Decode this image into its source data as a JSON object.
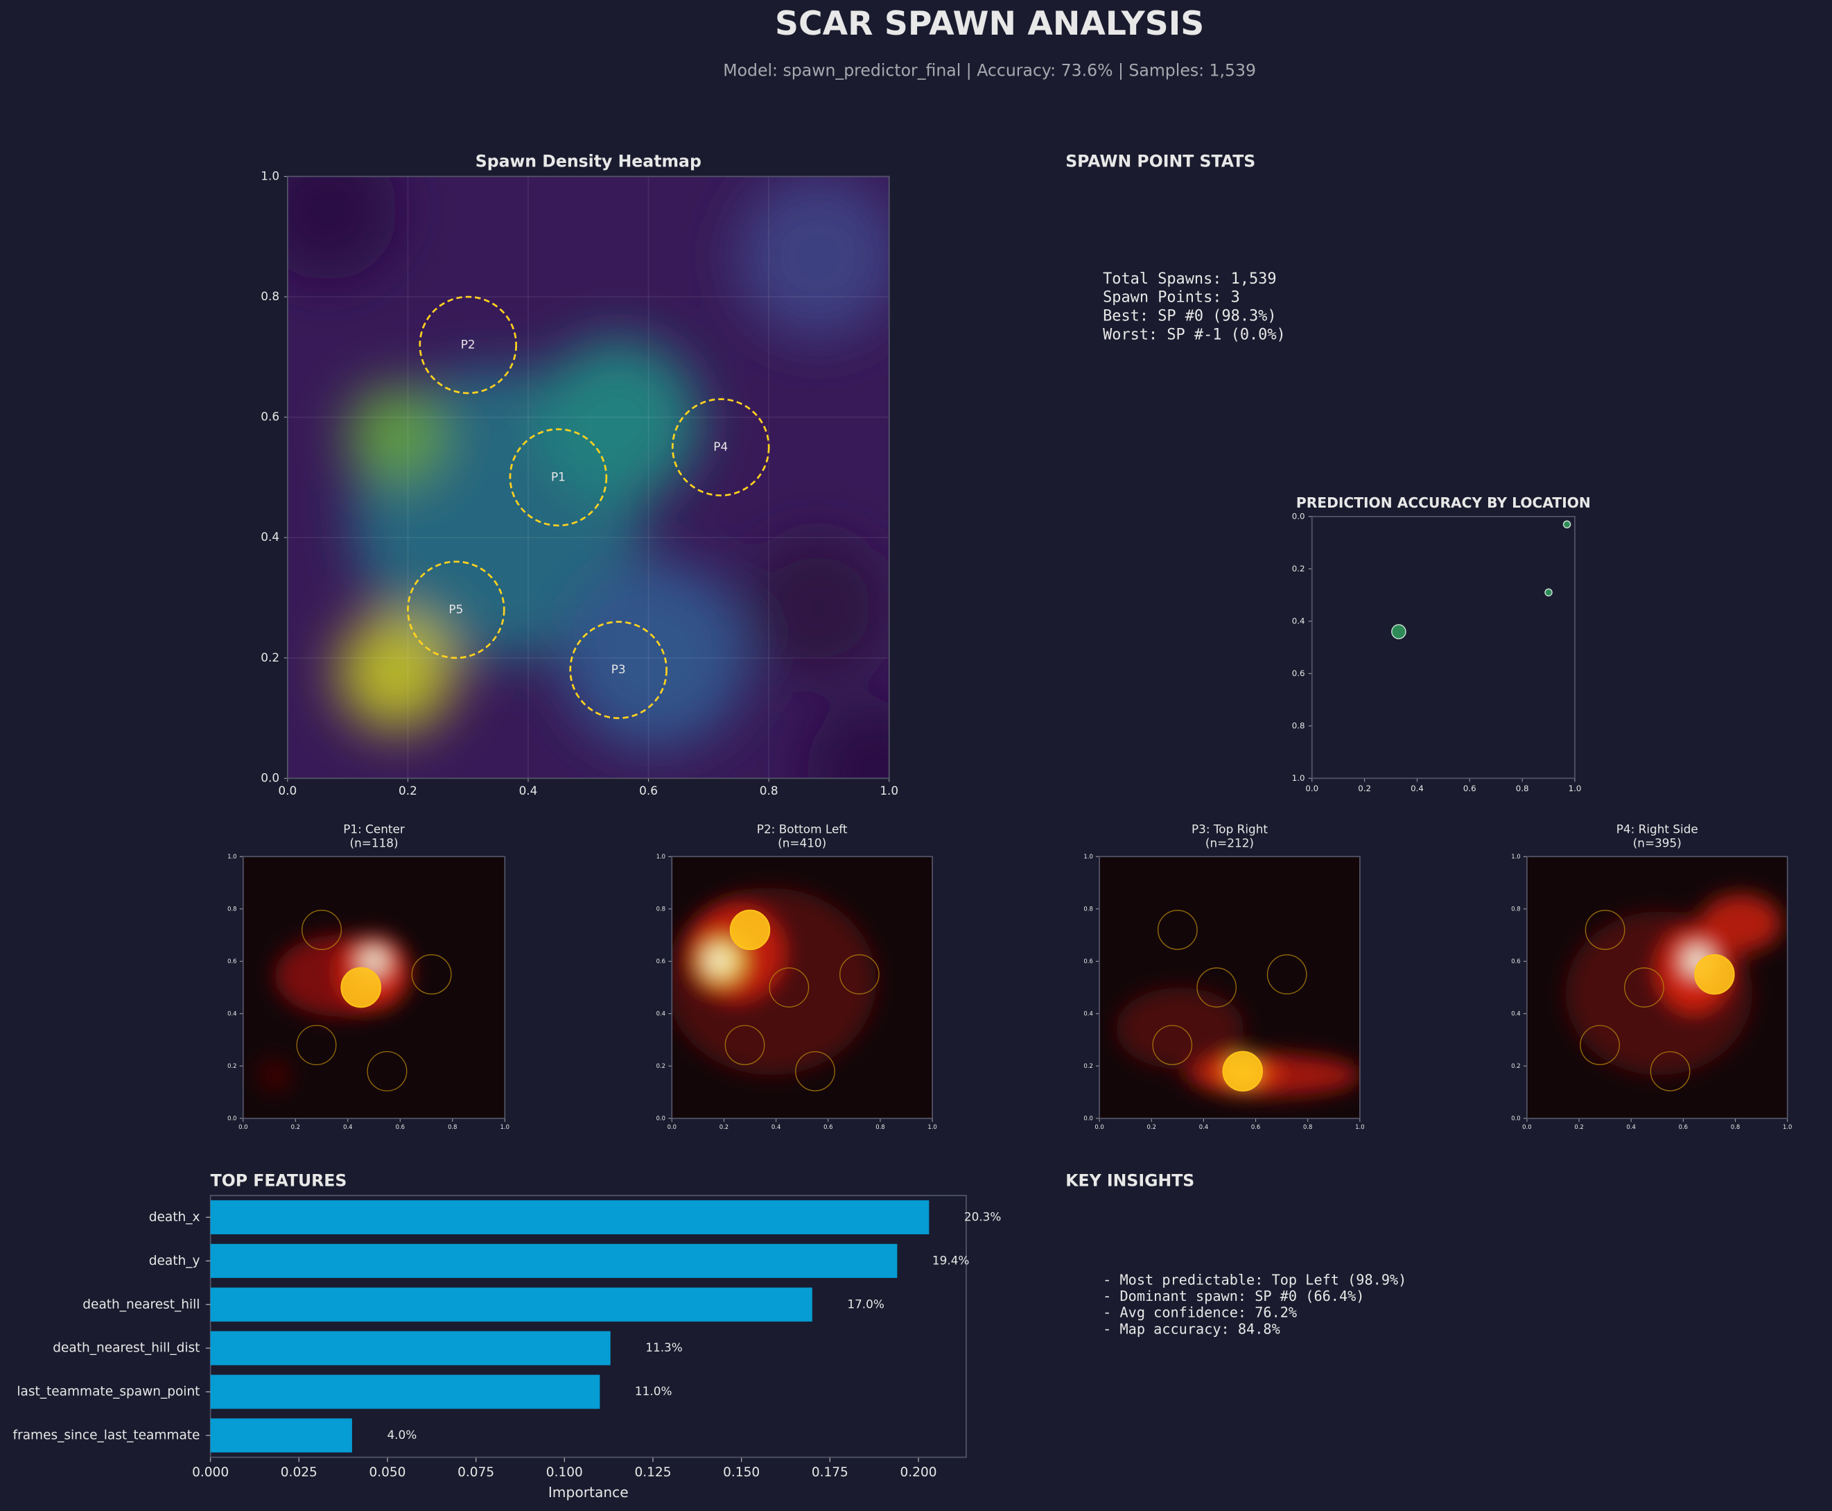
{
  "title": "SCAR SPAWN ANALYSIS",
  "subtitle": "Model: spawn_predictor_final | Accuracy: 73.6% | Samples: 1,539",
  "stats": {
    "title": "SPAWN POINT STATS",
    "lines": [
      "Total Spawns: 1,539",
      "Spawn Points: 3",
      "Best: SP #0 (98.3%)",
      "Worst: SP #-1 (0.0%)"
    ]
  },
  "insights": {
    "title": "KEY INSIGHTS",
    "lines": [
      "- Most predictable: Top Left (98.9%)",
      "- Dominant spawn: SP #0 (66.4%)",
      "- Avg confidence: 76.2%",
      "- Map accuracy: 84.8%"
    ]
  },
  "chart_data": [
    {
      "type": "heatmap",
      "title": "Spawn Density Heatmap",
      "grid": true,
      "color": "#ffd21f",
      "xlim": [
        0,
        1
      ],
      "ylim": [
        0,
        1
      ],
      "xticks": [
        {
          "value": 0,
          "label": "0.0"
        },
        0.2,
        0.4,
        0.6,
        0.8,
        {
          "value": 1,
          "label": "1.0"
        }
      ],
      "yticks": [
        {
          "value": 0,
          "label": "0.0"
        },
        0.2,
        0.4,
        0.6,
        0.8,
        {
          "value": 1,
          "label": "1.0"
        }
      ],
      "zones": [
        {
          "label": "P1",
          "x": 0.45,
          "y": 0.5,
          "r": 0.08
        },
        {
          "label": "P2",
          "x": 0.3,
          "y": 0.72,
          "r": 0.08
        },
        {
          "label": "P3",
          "x": 0.55,
          "y": 0.18,
          "r": 0.08
        },
        {
          "label": "P4",
          "x": 0.72,
          "y": 0.55,
          "r": 0.08
        },
        {
          "label": "P5",
          "x": 0.28,
          "y": 0.28,
          "r": 0.08
        }
      ]
    },
    {
      "type": "scatter",
      "title": "PREDICTION ACCURACY BY LOCATION",
      "color": "#2e8b57",
      "y_inverted": true,
      "xlim": [
        0,
        1
      ],
      "ylim": [
        0,
        1
      ],
      "xticks": [
        {
          "value": 0,
          "label": "0.0"
        },
        0.2,
        0.4,
        0.6,
        0.8,
        {
          "value": 1,
          "label": "1.0"
        }
      ],
      "yticks": [
        {
          "value": 0,
          "label": "0.0"
        },
        0.2,
        0.4,
        0.6,
        0.8,
        {
          "value": 1,
          "label": "1.0"
        }
      ],
      "x": [
        0.97,
        0.9,
        0.33
      ],
      "values": [
        0.03,
        0.29,
        0.44
      ],
      "sizes": [
        3,
        3,
        6
      ]
    },
    {
      "type": "heatmap",
      "title": "P1: Center",
      "subtitle": "(n=118)",
      "grid": false,
      "color": "#ffc41a",
      "highlight": 0,
      "xlim": [
        0,
        1
      ],
      "ylim": [
        0,
        1
      ],
      "xticks": [
        {
          "value": 0,
          "label": "0.0"
        },
        0.2,
        0.4,
        0.6,
        0.8,
        {
          "value": 1,
          "label": "1.0"
        }
      ],
      "yticks": [
        {
          "value": 0,
          "label": "0.0"
        },
        0.2,
        0.4,
        0.6,
        0.8,
        {
          "value": 1,
          "label": "1.0"
        }
      ],
      "zones": [
        {
          "x": 0.45,
          "y": 0.5,
          "r": 0.075
        },
        {
          "x": 0.3,
          "y": 0.72,
          "r": 0.075
        },
        {
          "x": 0.55,
          "y": 0.18,
          "r": 0.075
        },
        {
          "x": 0.72,
          "y": 0.55,
          "r": 0.075
        },
        {
          "x": 0.28,
          "y": 0.28,
          "r": 0.075
        }
      ]
    },
    {
      "type": "heatmap",
      "title": "P2: Bottom Left",
      "subtitle": "(n=410)",
      "grid": false,
      "color": "#ffc41a",
      "highlight": 1,
      "xlim": [
        0,
        1
      ],
      "ylim": [
        0,
        1
      ],
      "xticks": [
        {
          "value": 0,
          "label": "0.0"
        },
        0.2,
        0.4,
        0.6,
        0.8,
        {
          "value": 1,
          "label": "1.0"
        }
      ],
      "yticks": [
        {
          "value": 0,
          "label": "0.0"
        },
        0.2,
        0.4,
        0.6,
        0.8,
        {
          "value": 1,
          "label": "1.0"
        }
      ],
      "zones": [
        {
          "x": 0.45,
          "y": 0.5,
          "r": 0.075
        },
        {
          "x": 0.3,
          "y": 0.72,
          "r": 0.075
        },
        {
          "x": 0.55,
          "y": 0.18,
          "r": 0.075
        },
        {
          "x": 0.72,
          "y": 0.55,
          "r": 0.075
        },
        {
          "x": 0.28,
          "y": 0.28,
          "r": 0.075
        }
      ]
    },
    {
      "type": "heatmap",
      "title": "P3: Top Right",
      "subtitle": "(n=212)",
      "grid": false,
      "color": "#ffc41a",
      "highlight": 2,
      "xlim": [
        0,
        1
      ],
      "ylim": [
        0,
        1
      ],
      "xticks": [
        {
          "value": 0,
          "label": "0.0"
        },
        0.2,
        0.4,
        0.6,
        0.8,
        {
          "value": 1,
          "label": "1.0"
        }
      ],
      "yticks": [
        {
          "value": 0,
          "label": "0.0"
        },
        0.2,
        0.4,
        0.6,
        0.8,
        {
          "value": 1,
          "label": "1.0"
        }
      ],
      "zones": [
        {
          "x": 0.45,
          "y": 0.5,
          "r": 0.075
        },
        {
          "x": 0.3,
          "y": 0.72,
          "r": 0.075
        },
        {
          "x": 0.55,
          "y": 0.18,
          "r": 0.075
        },
        {
          "x": 0.72,
          "y": 0.55,
          "r": 0.075
        },
        {
          "x": 0.28,
          "y": 0.28,
          "r": 0.075
        }
      ]
    },
    {
      "type": "heatmap",
      "title": "P4: Right Side",
      "subtitle": "(n=395)",
      "grid": false,
      "color": "#ffc41a",
      "highlight": 3,
      "xlim": [
        0,
        1
      ],
      "ylim": [
        0,
        1
      ],
      "xticks": [
        {
          "value": 0,
          "label": "0.0"
        },
        0.2,
        0.4,
        0.6,
        0.8,
        {
          "value": 1,
          "label": "1.0"
        }
      ],
      "yticks": [
        {
          "value": 0,
          "label": "0.0"
        },
        0.2,
        0.4,
        0.6,
        0.8,
        {
          "value": 1,
          "label": "1.0"
        }
      ],
      "zones": [
        {
          "x": 0.45,
          "y": 0.5,
          "r": 0.075
        },
        {
          "x": 0.3,
          "y": 0.72,
          "r": 0.075
        },
        {
          "x": 0.55,
          "y": 0.18,
          "r": 0.075
        },
        {
          "x": 0.72,
          "y": 0.55,
          "r": 0.075
        },
        {
          "x": 0.28,
          "y": 0.28,
          "r": 0.075
        }
      ]
    },
    {
      "type": "barh",
      "title": "TOP FEATURES",
      "xlabel": "Importance",
      "color": "#069cd4",
      "categories": [
        "death_x",
        "death_y",
        "death_nearest_hill",
        "death_nearest_hill_dist",
        "last_teammate_spawn_point",
        "frames_since_last_teammate"
      ],
      "values": [
        0.203,
        0.194,
        0.17,
        0.113,
        0.11,
        0.04
      ],
      "value_labels": [
        "20.3%",
        "19.4%",
        "17.0%",
        "11.3%",
        "11.0%",
        "4.0%"
      ],
      "xlim": [
        0,
        0.2135
      ],
      "xticks": [
        {
          "value": 0,
          "label": "0.000"
        },
        {
          "value": 0.025,
          "label": "0.025"
        },
        {
          "value": 0.05,
          "label": "0.050"
        },
        {
          "value": 0.075,
          "label": "0.075"
        },
        {
          "value": 0.1,
          "label": "0.100"
        },
        {
          "value": 0.125,
          "label": "0.125"
        },
        {
          "value": 0.15,
          "label": "0.150"
        },
        {
          "value": 0.175,
          "label": "0.175"
        },
        {
          "value": 0.2,
          "label": "0.200"
        }
      ]
    }
  ]
}
